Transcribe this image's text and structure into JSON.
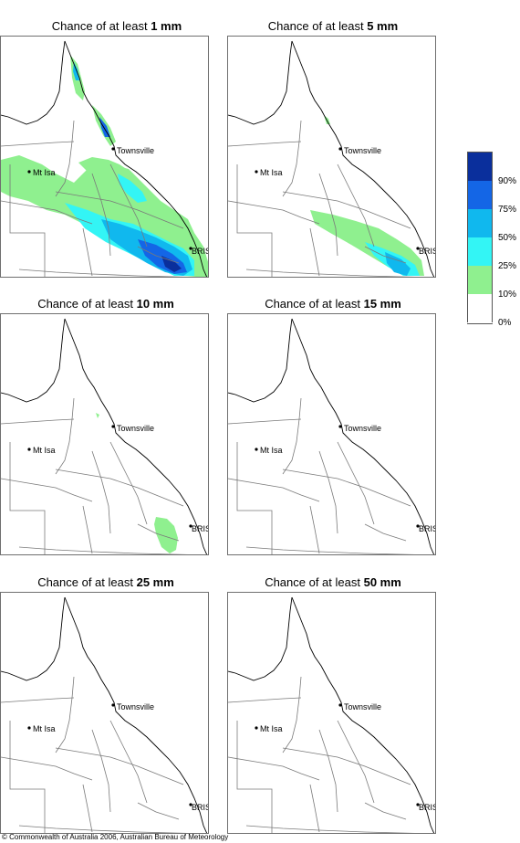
{
  "panels": [
    {
      "prefix": "Chance of at least",
      "amount": "1 mm"
    },
    {
      "prefix": "Chance of at least",
      "amount": "5 mm"
    },
    {
      "prefix": "Chance of at least",
      "amount": "10 mm"
    },
    {
      "prefix": "Chance of at least",
      "amount": "15 mm"
    },
    {
      "prefix": "Chance of at least",
      "amount": "25 mm"
    },
    {
      "prefix": "Chance of at least",
      "amount": "50 mm"
    }
  ],
  "places": {
    "townsville": "Townsville",
    "mt_isa": "Mt Isa",
    "bris": "BRIS"
  },
  "legend": {
    "labels": [
      "90%",
      "75%",
      "50%",
      "25%",
      "10%",
      "0%"
    ],
    "colors": [
      "#0a2f9c",
      "#1466e6",
      "#10b8ee",
      "#33f5f5",
      "#8ff08f",
      "#ffffff"
    ]
  },
  "copyright": "© Commonwealth of Australia 2006, Australian Bureau of Meteorology"
}
